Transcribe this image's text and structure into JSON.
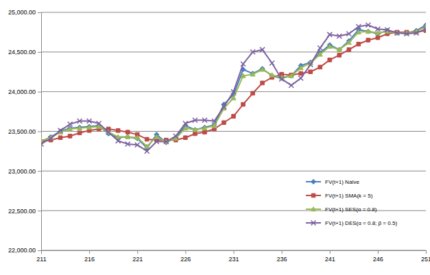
{
  "chart_data": {
    "type": "line",
    "x": [
      211,
      212,
      213,
      214,
      215,
      216,
      217,
      218,
      219,
      220,
      221,
      222,
      223,
      224,
      225,
      226,
      227,
      228,
      229,
      230,
      231,
      232,
      233,
      234,
      235,
      236,
      237,
      238,
      239,
      240,
      241,
      242,
      243,
      244,
      245,
      246,
      247,
      248,
      249,
      250,
      251
    ],
    "series": [
      {
        "name": "FV(t+1) Naïve",
        "color": "#4a7ebb",
        "marker": "diamond",
        "values": [
          23370,
          23430,
          23500,
          23540,
          23550,
          23560,
          23570,
          23470,
          23420,
          23430,
          23410,
          23290,
          23460,
          23360,
          23420,
          23570,
          23520,
          23550,
          23580,
          23840,
          23960,
          24280,
          24230,
          24290,
          24200,
          24170,
          24200,
          24330,
          24370,
          24490,
          24590,
          24530,
          24640,
          24780,
          24760,
          24730,
          24770,
          24740,
          24740,
          24770,
          24840
        ]
      },
      {
        "name": "FV(t+1) SMA(k = 5)",
        "color": "#be4b48",
        "marker": "square",
        "values": [
          23370,
          23390,
          23420,
          23440,
          23480,
          23510,
          23530,
          23530,
          23510,
          23490,
          23460,
          23400,
          23390,
          23390,
          23390,
          23420,
          23470,
          23490,
          23530,
          23610,
          23690,
          23840,
          23980,
          24110,
          24180,
          24220,
          24210,
          24230,
          24250,
          24310,
          24400,
          24460,
          24530,
          24600,
          24650,
          24680,
          24730,
          24750,
          24750,
          24750,
          24770
        ]
      },
      {
        "name": "FV(t+1) SES(α = 0.8)",
        "color": "#98b954",
        "marker": "triangle",
        "values": [
          23380,
          23420,
          23490,
          23530,
          23540,
          23550,
          23560,
          23490,
          23430,
          23430,
          23420,
          23310,
          23430,
          23370,
          23410,
          23540,
          23520,
          23540,
          23570,
          23790,
          23920,
          24200,
          24220,
          24280,
          24210,
          24180,
          24200,
          24300,
          24360,
          24470,
          24570,
          24530,
          24620,
          24750,
          24760,
          24740,
          24760,
          24740,
          24740,
          24760,
          24820
        ]
      },
      {
        "name": "FV(t+1) DES(α = 0.8; β = 0.5)",
        "color": "#7d60a0",
        "marker": "x",
        "values": [
          23340,
          23410,
          23510,
          23590,
          23630,
          23630,
          23600,
          23490,
          23380,
          23340,
          23330,
          23250,
          23370,
          23370,
          23440,
          23600,
          23640,
          23640,
          23630,
          23810,
          24000,
          24350,
          24500,
          24530,
          24360,
          24160,
          24080,
          24170,
          24340,
          24550,
          24720,
          24700,
          24730,
          24820,
          24840,
          24790,
          24780,
          24740,
          24730,
          24740,
          24790
        ]
      }
    ],
    "xlim": [
      211,
      251
    ],
    "xticks": [
      211,
      216,
      221,
      226,
      231,
      236,
      241,
      246,
      251
    ],
    "ylim": [
      22000,
      25000
    ],
    "yticks": [
      {
        "value": 22000,
        "label": "22,000.00"
      },
      {
        "value": 22500,
        "label": "22,500.00"
      },
      {
        "value": 23000,
        "label": "23,000.00"
      },
      {
        "value": 23500,
        "label": "23,500.00"
      },
      {
        "value": 24000,
        "label": "24,000.00"
      },
      {
        "value": 24500,
        "label": "24,500.00"
      },
      {
        "value": 25000,
        "label": "25,000.00"
      }
    ],
    "grid": true,
    "legend": "lower right"
  }
}
